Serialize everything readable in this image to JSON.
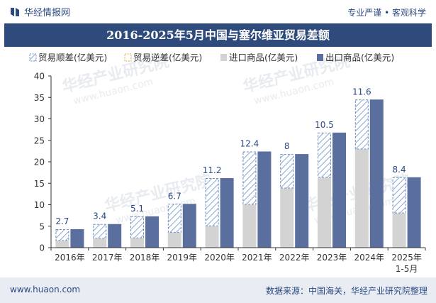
{
  "header": {
    "brand": "华经情报网",
    "tagline": "专业严谨 • 客观科学",
    "title": "2016-2025年5月中国与塞尔维亚贸易差额"
  },
  "footer": {
    "site": "www.huaon.com",
    "source": "数据来源：中国海关，华经产业研究院整理"
  },
  "colors": {
    "header_band": "#2f4b7c",
    "surplus": "#6e8cc0",
    "imports": "#d3d3d3",
    "exports": "#5a6f9e"
  },
  "icons": [
    "brand-logo-icon",
    "surplus-legend-icon",
    "deficit-legend-icon",
    "imports-legend-icon",
    "exports-legend-icon"
  ],
  "chart_data": {
    "type": "bar",
    "categories": [
      "2016年",
      "2017年",
      "2018年",
      "2019年",
      "2020年",
      "2021年",
      "2022年",
      "2023年",
      "2024年",
      "2025年\n1-5月"
    ],
    "series": [
      {
        "name": "贸易顺差(亿美元)",
        "values": [
          2.7,
          3.4,
          5.1,
          6.7,
          11.2,
          12.4,
          8,
          10.5,
          11.6,
          8.4
        ]
      },
      {
        "name": "贸易逆差(亿美元)",
        "values": [
          0,
          0,
          0,
          0,
          0,
          0,
          0,
          0,
          0,
          0
        ]
      },
      {
        "name": "进口商品(亿美元)",
        "values": [
          1.6,
          2.1,
          2.2,
          3.5,
          5.0,
          10.0,
          13.8,
          16.3,
          22.9,
          8.0
        ]
      },
      {
        "name": "出口商品(亿美元)",
        "values": [
          4.3,
          5.5,
          7.3,
          10.2,
          16.2,
          22.4,
          21.8,
          26.8,
          34.5,
          16.4
        ]
      }
    ],
    "data_labels": [
      "2.7",
      "3.4",
      "5.1",
      "6.7",
      "11.2",
      "12.4",
      "8",
      "10.5",
      "11.6",
      "8.4"
    ],
    "y_ticks": [
      "0",
      "5",
      "10",
      "15",
      "20",
      "25",
      "30",
      "35",
      "40"
    ],
    "ylim": [
      0,
      40
    ],
    "grid": false,
    "legend": "top-left",
    "watermark": "华经产业研究院",
    "watermark_url": "www.huaon.com"
  }
}
